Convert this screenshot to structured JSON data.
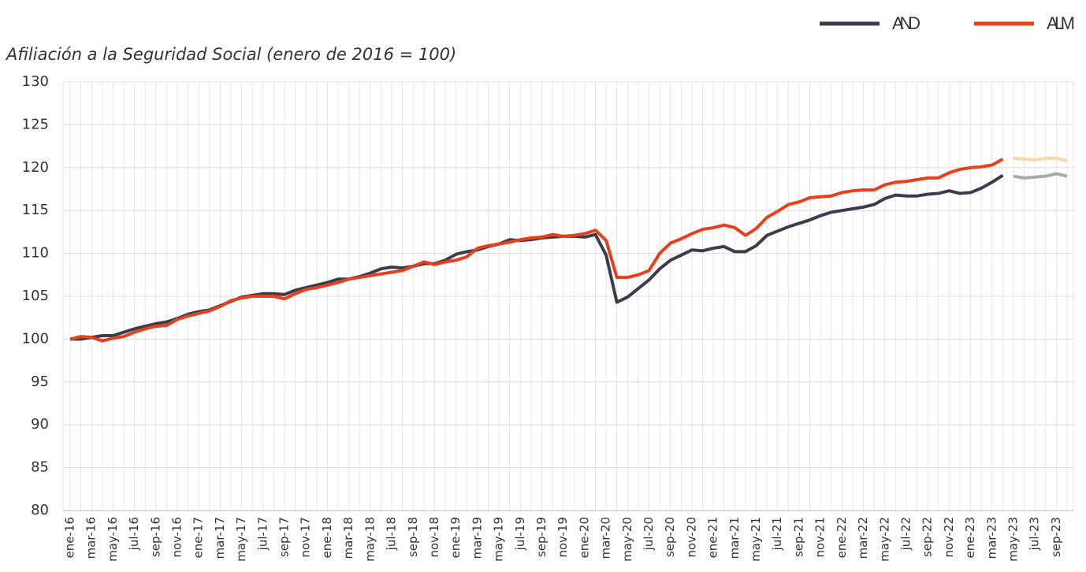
{
  "chart_data": {
    "type": "line",
    "title": "Afiliación a la Seguridad Social (enero de 2016 = 100)",
    "categories": [
      "ene-16",
      null,
      "mar-16",
      null,
      "may-16",
      null,
      "jul-16",
      null,
      "sep-16",
      null,
      "nov-16",
      null,
      "ene-17",
      null,
      "mar-17",
      null,
      "may-17",
      null,
      "jul-17",
      null,
      "sep-17",
      null,
      "nov-17",
      null,
      "ene-18",
      null,
      "mar-18",
      null,
      "may-18",
      null,
      "jul-18",
      null,
      "sep-18",
      null,
      "nov-18",
      null,
      "ene-19",
      null,
      "mar-19",
      null,
      "may-19",
      null,
      "jul-19",
      null,
      "sep-19",
      null,
      "nov-19",
      null,
      "ene-20",
      null,
      "mar-20",
      null,
      "may-20",
      null,
      "jul-20",
      null,
      "sep-20",
      null,
      "nov-20",
      null,
      "ene-21",
      null,
      "mar-21",
      null,
      "may-21",
      null,
      "jul-21",
      null,
      "sep-21",
      null,
      "nov-21",
      null,
      "ene-22",
      null,
      "mar-22",
      null,
      "may-22",
      null,
      "jul-22",
      null,
      "sep-22",
      null,
      "nov-22",
      null,
      "ene-23",
      null,
      "mar-23",
      null,
      "may-23",
      null,
      "jul-23",
      null,
      "sep-23",
      null
    ],
    "series": [
      {
        "name": "AND",
        "color": "#3b3d4a",
        "values": [
          100,
          100,
          100.2,
          100.4,
          100.4,
          100.8,
          101.2,
          101.5,
          101.8,
          102,
          102.4,
          102.9,
          103.2,
          103.4,
          103.9,
          104.4,
          104.9,
          105.1,
          105.3,
          105.3,
          105.2,
          105.7,
          106,
          106.3,
          106.6,
          107,
          107,
          107.3,
          107.7,
          108.2,
          108.4,
          108.3,
          108.5,
          108.8,
          108.8,
          109.2,
          109.9,
          110.2,
          110.4,
          110.8,
          111.1,
          111.6,
          111.5,
          111.6,
          111.8,
          111.9,
          112,
          112,
          111.9,
          112.2,
          109.8,
          104.3,
          104.9,
          105.9,
          106.9,
          108.2,
          109.2,
          109.8,
          110.4,
          110.3,
          110.6,
          110.8,
          110.2,
          110.2,
          110.9,
          112.1,
          112.6,
          113.1,
          113.5,
          113.9,
          114.4,
          114.8,
          115,
          115.2,
          115.4,
          115.7,
          116.4,
          116.8,
          116.7,
          116.7,
          116.9,
          117,
          117.3,
          117,
          117.1,
          117.6,
          118.3,
          119.1,
          null,
          null,
          null,
          null,
          null,
          null
        ]
      },
      {
        "name": "ALM",
        "color": "#e8401c",
        "values": [
          100,
          100.3,
          100.2,
          99.8,
          100.1,
          100.3,
          100.8,
          101.2,
          101.5,
          101.6,
          102.3,
          102.7,
          103,
          103.3,
          103.8,
          104.5,
          104.8,
          105,
          105,
          105,
          104.7,
          105.3,
          105.8,
          106,
          106.3,
          106.6,
          107,
          107.2,
          107.4,
          107.6,
          107.8,
          108,
          108.5,
          109,
          108.7,
          109,
          109.2,
          109.6,
          110.6,
          110.9,
          111.1,
          111.3,
          111.6,
          111.8,
          111.9,
          112.2,
          112,
          112.1,
          112.3,
          112.7,
          111.5,
          107.2,
          107.2,
          107.5,
          108,
          110,
          111.2,
          111.7,
          112.3,
          112.8,
          113,
          113.3,
          113,
          112.1,
          112.9,
          114.2,
          114.9,
          115.7,
          116,
          116.5,
          116.6,
          116.7,
          117.1,
          117.3,
          117.4,
          117.4,
          118,
          118.3,
          118.4,
          118.6,
          118.8,
          118.8,
          119.4,
          119.8,
          120,
          120.1,
          120.3,
          121,
          null,
          null,
          null,
          null,
          null,
          null
        ]
      },
      {
        "color": "#a9a9b0",
        "values": [
          null,
          null,
          null,
          null,
          null,
          null,
          null,
          null,
          null,
          null,
          null,
          null,
          null,
          null,
          null,
          null,
          null,
          null,
          null,
          null,
          null,
          null,
          null,
          null,
          null,
          null,
          null,
          null,
          null,
          null,
          null,
          null,
          null,
          null,
          null,
          null,
          null,
          null,
          null,
          null,
          null,
          null,
          null,
          null,
          null,
          null,
          null,
          null,
          null,
          null,
          null,
          null,
          null,
          null,
          null,
          null,
          null,
          null,
          null,
          null,
          null,
          null,
          null,
          null,
          null,
          null,
          null,
          null,
          null,
          null,
          null,
          null,
          null,
          null,
          null,
          null,
          null,
          null,
          null,
          null,
          null,
          null,
          null,
          null,
          null,
          null,
          null,
          null,
          119,
          118.8,
          118.9,
          119,
          119.3,
          119
        ]
      },
      {
        "color": "#f8d9a8",
        "values": [
          null,
          null,
          null,
          null,
          null,
          null,
          null,
          null,
          null,
          null,
          null,
          null,
          null,
          null,
          null,
          null,
          null,
          null,
          null,
          null,
          null,
          null,
          null,
          null,
          null,
          null,
          null,
          null,
          null,
          null,
          null,
          null,
          null,
          null,
          null,
          null,
          null,
          null,
          null,
          null,
          null,
          null,
          null,
          null,
          null,
          null,
          null,
          null,
          null,
          null,
          null,
          null,
          null,
          null,
          null,
          null,
          null,
          null,
          null,
          null,
          null,
          null,
          null,
          null,
          null,
          null,
          null,
          null,
          null,
          null,
          null,
          null,
          null,
          null,
          null,
          null,
          null,
          null,
          null,
          null,
          null,
          null,
          null,
          null,
          null,
          null,
          null,
          null,
          121.1,
          121,
          120.9,
          121.1,
          121.1,
          120.8
        ]
      }
    ],
    "ylim": [
      80,
      130
    ],
    "yticks": [
      80,
      85,
      90,
      95,
      100,
      105,
      110,
      115,
      120,
      125,
      130
    ],
    "grid": true,
    "legend": "top-right"
  }
}
